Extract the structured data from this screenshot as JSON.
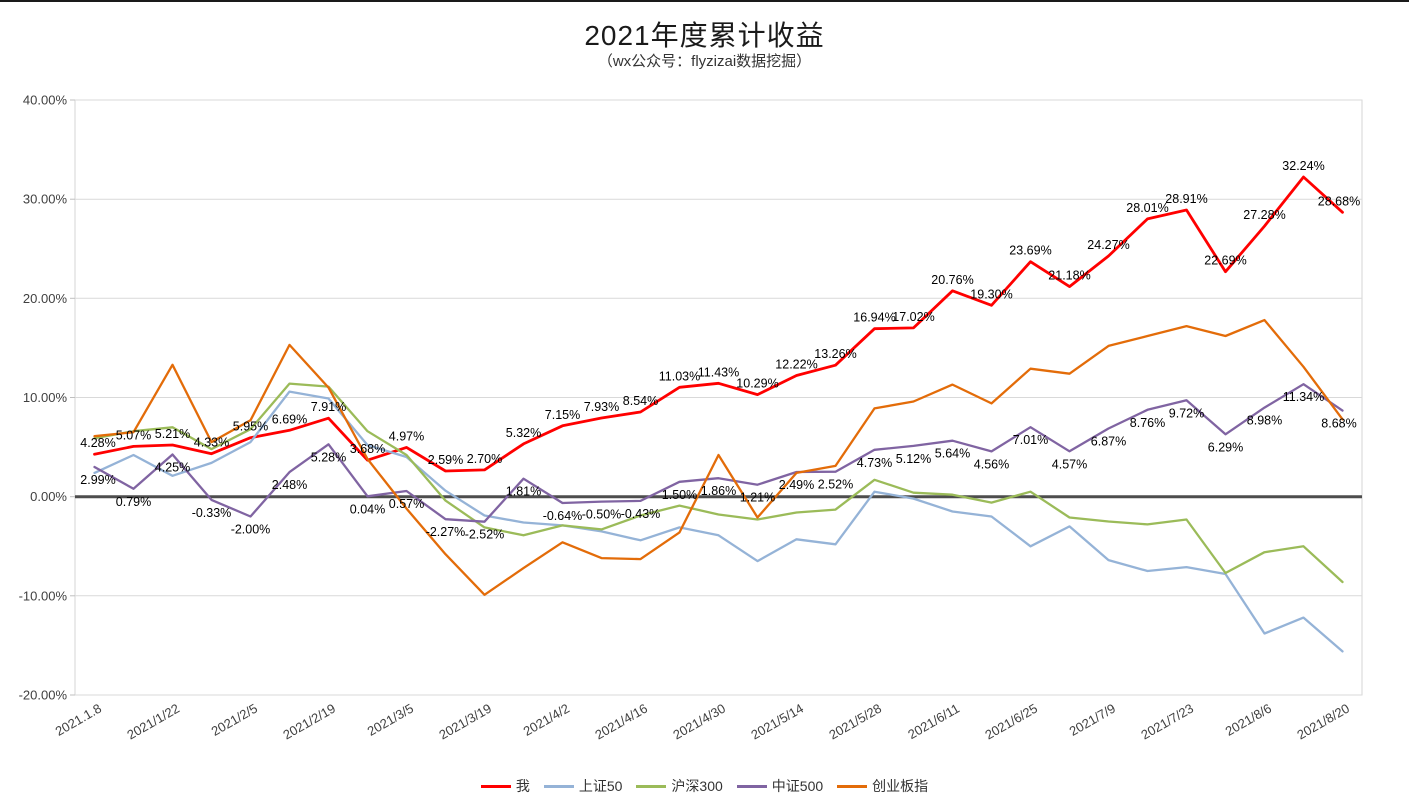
{
  "chart_data": {
    "type": "line",
    "title": "2021年度累计收益",
    "subtitle": "（wx公众号：flyzizai数据挖掘）",
    "ylim": [
      -20,
      40
    ],
    "y_ticks": [
      "40.00%",
      "30.00%",
      "20.00%",
      "10.00%",
      "0.00%",
      "-10.00%",
      "-20.00%"
    ],
    "grid": "horizontal",
    "legend_position": "bottom",
    "x": [
      "2021.1.8",
      "2021/1/15",
      "2021/1/22",
      "2021/1/29",
      "2021/2/5",
      "2021/2/10",
      "2021/2/19",
      "2021/2/26",
      "2021/3/5",
      "2021/3/12",
      "2021/3/19",
      "2021/3/26",
      "2021/4/2",
      "2021/4/9",
      "2021/4/16",
      "2021/4/23",
      "2021/4/30",
      "2021/5/7",
      "2021/5/14",
      "2021/5/21",
      "2021/5/28",
      "2021/6/4",
      "2021/6/11",
      "2021/6/18",
      "2021/6/25",
      "2021/7/2",
      "2021/7/9",
      "2021/7/16",
      "2021/7/23",
      "2021/7/30",
      "2021/8/6",
      "2021/8/13",
      "2021/8/20"
    ],
    "x_tick_labels_shown": [
      "2021.1.8",
      "2021/1/22",
      "2021/2/5",
      "2021/2/19",
      "2021/3/5",
      "2021/3/19",
      "2021/4/2",
      "2021/4/16",
      "2021/4/30",
      "2021/5/14",
      "2021/5/28",
      "2021/6/11",
      "2021/6/25",
      "2021/7/9",
      "2021/7/23",
      "2021/8/6",
      "2021/8/20"
    ],
    "series": [
      {
        "key": "me",
        "name": "我",
        "color": "#FF0000",
        "width": 2.8,
        "show_labels": true,
        "label_position": "above",
        "values": [
          4.28,
          5.07,
          5.21,
          4.33,
          5.95,
          6.69,
          7.91,
          3.68,
          4.97,
          2.59,
          2.7,
          5.32,
          7.15,
          7.93,
          8.54,
          11.03,
          11.43,
          10.29,
          12.22,
          13.26,
          16.94,
          17.02,
          20.76,
          19.3,
          23.69,
          21.18,
          24.27,
          28.01,
          28.91,
          22.69,
          27.28,
          32.24,
          28.68
        ]
      },
      {
        "key": "sse50",
        "name": "上证50",
        "color": "#95B3D7",
        "width": 2.3,
        "show_labels": false,
        "label_position": "above",
        "values": [
          2.4,
          4.2,
          2.1,
          3.4,
          5.5,
          10.6,
          9.9,
          5.2,
          4.0,
          0.6,
          -1.9,
          -2.6,
          -2.9,
          -3.5,
          -4.4,
          -3.1,
          -3.9,
          -6.5,
          -4.3,
          -4.8,
          0.5,
          -0.2,
          -1.5,
          -2.0,
          -5.0,
          -3.0,
          -6.4,
          -7.5,
          -7.1,
          -7.8,
          -13.8,
          -12.2,
          -15.6
        ]
      },
      {
        "key": "csi300",
        "name": "沪深300",
        "color": "#9BBB59",
        "width": 2.3,
        "show_labels": false,
        "label_position": "above",
        "values": [
          5.9,
          6.6,
          7.0,
          4.8,
          6.8,
          11.4,
          11.1,
          6.6,
          4.2,
          -0.4,
          -3.1,
          -3.9,
          -2.9,
          -3.3,
          -1.9,
          -0.9,
          -1.8,
          -2.3,
          -1.6,
          -1.3,
          1.7,
          0.4,
          0.2,
          -0.6,
          0.5,
          -2.1,
          -2.5,
          -2.8,
          -2.3,
          -7.7,
          -5.6,
          -5.0,
          -8.6
        ]
      },
      {
        "key": "csi500",
        "name": "中证500",
        "color": "#8064A2",
        "width": 2.3,
        "show_labels": true,
        "label_position": "below",
        "values": [
          2.99,
          0.79,
          4.25,
          -0.33,
          -2.0,
          2.48,
          5.28,
          0.04,
          0.57,
          -2.27,
          -2.52,
          1.81,
          -0.64,
          -0.5,
          -0.43,
          1.5,
          1.86,
          1.21,
          2.49,
          2.52,
          4.73,
          5.12,
          5.64,
          4.56,
          7.01,
          4.57,
          6.87,
          8.76,
          9.72,
          6.29,
          8.98,
          11.34,
          8.68
        ]
      },
      {
        "key": "chinext",
        "name": "创业板指",
        "color": "#E36C09",
        "width": 2.3,
        "show_labels": false,
        "label_position": "above",
        "values": [
          6.1,
          6.5,
          13.3,
          5.5,
          7.7,
          15.3,
          11.0,
          3.8,
          -1.2,
          -5.8,
          -9.9,
          -7.2,
          -4.6,
          -6.2,
          -6.3,
          -3.6,
          4.2,
          -2.1,
          2.4,
          3.1,
          8.9,
          9.6,
          11.3,
          9.4,
          12.9,
          12.4,
          15.2,
          16.2,
          17.2,
          16.2,
          17.8,
          13.1,
          7.8
        ]
      }
    ]
  }
}
